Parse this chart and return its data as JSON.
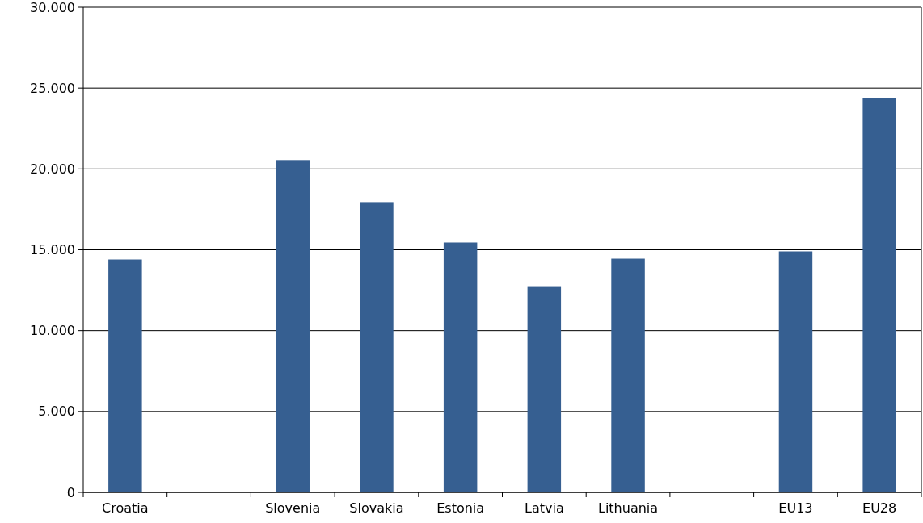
{
  "chart_data": {
    "type": "bar",
    "categories": [
      "Croatia",
      null,
      "Slovenia",
      "Slovakia",
      "Estonia",
      "Latvia",
      "Lithuania",
      null,
      "EU13",
      "EU28"
    ],
    "values": [
      14400,
      null,
      20550,
      17950,
      15450,
      12750,
      14450,
      null,
      14900,
      24400
    ],
    "color": "#365f91",
    "ylim": [
      0,
      30000
    ],
    "yticks": [
      0,
      {
        "value": 5000,
        "label": "5.000"
      },
      {
        "value": 10000,
        "label": "10.000"
      },
      {
        "value": 15000,
        "label": "15.000"
      },
      {
        "value": 20000,
        "label": "20.000"
      },
      {
        "value": 25000,
        "label": "25.000"
      },
      {
        "value": 30000,
        "label": "30.000"
      }
    ],
    "grid": "y"
  }
}
